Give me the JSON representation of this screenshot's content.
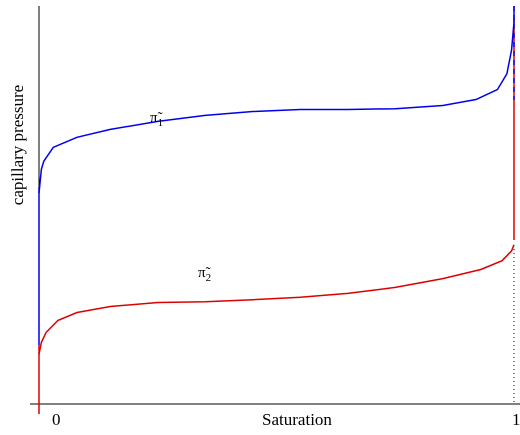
{
  "chart_data": {
    "type": "line",
    "xlabel": "Saturation",
    "ylabel": "capillary pressure",
    "x_ticks": [
      "0",
      "1"
    ],
    "xlim": [
      0,
      1
    ],
    "grid": false,
    "series": [
      {
        "name": "π̃1",
        "color": "#0000ee",
        "points": [
          [
            0.0,
            0.53
          ],
          [
            0.005,
            0.59
          ],
          [
            0.01,
            0.61
          ],
          [
            0.03,
            0.645
          ],
          [
            0.08,
            0.67
          ],
          [
            0.15,
            0.69
          ],
          [
            0.25,
            0.71
          ],
          [
            0.35,
            0.725
          ],
          [
            0.45,
            0.735
          ],
          [
            0.55,
            0.74
          ],
          [
            0.65,
            0.74
          ],
          [
            0.75,
            0.742
          ],
          [
            0.85,
            0.75
          ],
          [
            0.92,
            0.765
          ],
          [
            0.965,
            0.79
          ],
          [
            0.985,
            0.83
          ],
          [
            0.995,
            0.89
          ],
          [
            1.0,
            0.96
          ],
          [
            1.0,
            1.0
          ]
        ]
      },
      {
        "name": "π̃2",
        "color": "#dd0000",
        "points": [
          [
            0.0,
            0.125
          ],
          [
            0.005,
            0.155
          ],
          [
            0.015,
            0.18
          ],
          [
            0.04,
            0.21
          ],
          [
            0.08,
            0.23
          ],
          [
            0.15,
            0.245
          ],
          [
            0.25,
            0.255
          ],
          [
            0.35,
            0.257
          ],
          [
            0.45,
            0.262
          ],
          [
            0.55,
            0.268
          ],
          [
            0.65,
            0.278
          ],
          [
            0.75,
            0.293
          ],
          [
            0.85,
            0.315
          ],
          [
            0.93,
            0.338
          ],
          [
            0.975,
            0.36
          ],
          [
            0.995,
            0.385
          ],
          [
            1.0,
            0.4
          ]
        ]
      }
    ]
  }
}
